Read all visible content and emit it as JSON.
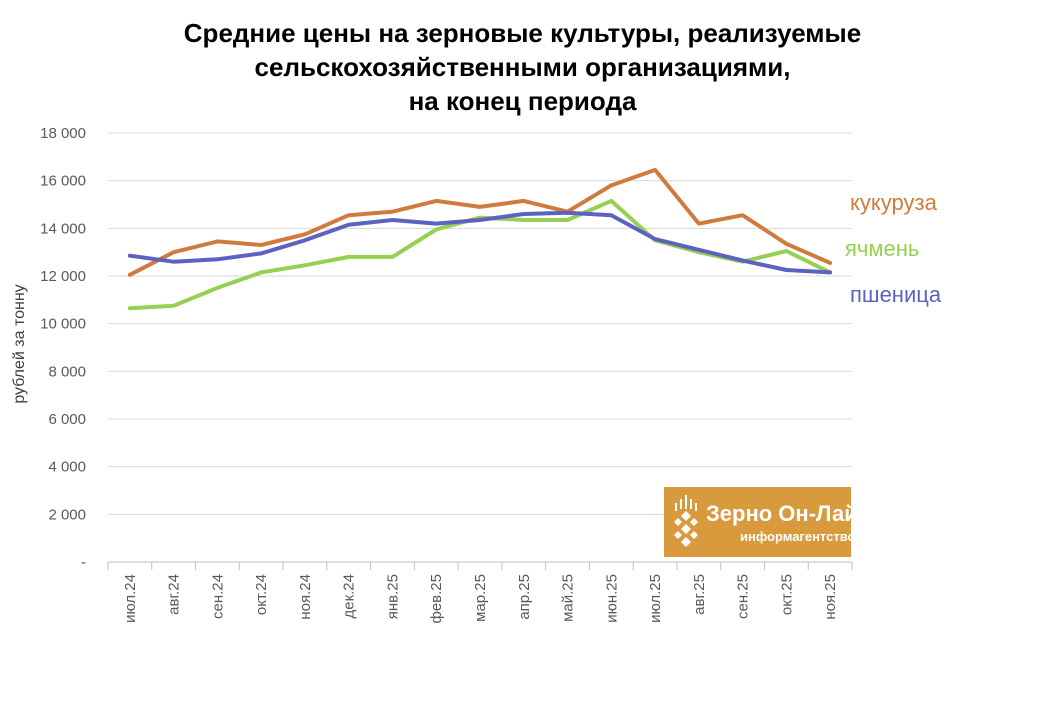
{
  "title_lines": [
    "Средние цены на зерновые культуры, реализуемые",
    "сельскохозяйственными организациями,",
    "на конец периода"
  ],
  "logo": {
    "name": "Зерно Он-Лайн",
    "subtitle": "информагентство"
  },
  "colors": {
    "kukuruza": "#d07b3e",
    "yachmen": "#97cf53",
    "pshenitsa": "#5b62bf",
    "grid": "#d9d9d9",
    "logo_bg": "#d99a3d"
  },
  "chart_data": {
    "type": "line",
    "ylabel": "рублей за тонну",
    "ylim": [
      0,
      18000
    ],
    "y_tick_labels": [
      "-",
      "2 000",
      "4 000",
      "6 000",
      "8 000",
      "10 000",
      "12 000",
      "14 000",
      "16 000",
      "18 000"
    ],
    "categories": [
      "июл.24",
      "авг.24",
      "сен.24",
      "окт.24",
      "ноя.24",
      "дек.24",
      "янв.25",
      "фев.25",
      "мар.25",
      "апр.25",
      "май.25",
      "июн.25",
      "июл.25",
      "авг.25",
      "сен.25",
      "окт.25",
      "ноя.25"
    ],
    "grid": "horizontal",
    "series": [
      {
        "name": "кукуруза",
        "color": "#d07b3e",
        "values": [
          12050,
          13000,
          13450,
          13300,
          13750,
          14550,
          14700,
          15150,
          14900,
          15150,
          14700,
          15800,
          16450,
          14200,
          14550,
          13350,
          12550
        ]
      },
      {
        "name": "ячмень",
        "color": "#97cf53",
        "values": [
          10650,
          10750,
          11500,
          12150,
          12450,
          12800,
          12800,
          13950,
          14450,
          14350,
          14350,
          15150,
          13500,
          13000,
          12600,
          13050,
          12150
        ]
      },
      {
        "name": "пшеница",
        "color": "#5b62bf",
        "values": [
          12850,
          12600,
          12700,
          12950,
          13500,
          14150,
          14350,
          14200,
          14350,
          14600,
          14650,
          14550,
          13550,
          13100,
          12650,
          12250,
          12150
        ]
      }
    ]
  }
}
